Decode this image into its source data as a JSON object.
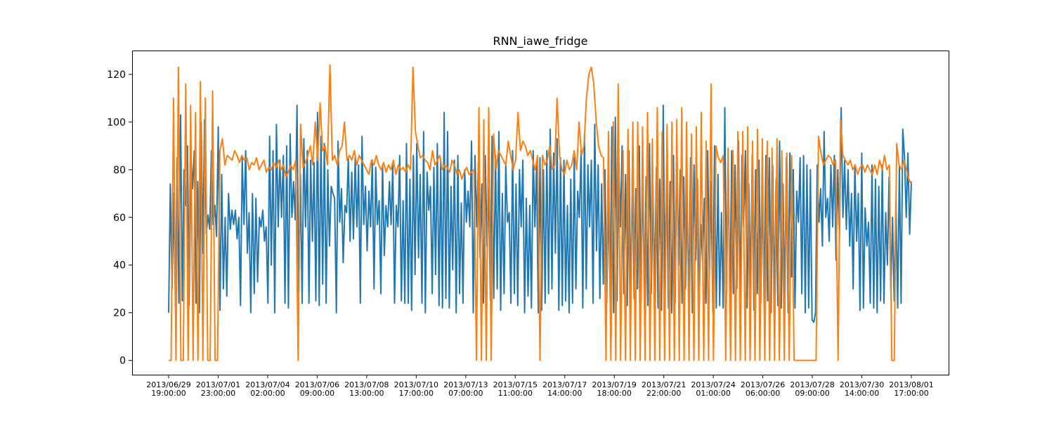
{
  "chart_data": {
    "type": "line",
    "title": "RNN_iawe_fridge",
    "xlabel": "",
    "ylabel": "",
    "ylim": [
      -6,
      130
    ],
    "yticks": [
      0,
      20,
      40,
      60,
      80,
      100,
      120
    ],
    "grid": false,
    "legend": "none",
    "x_start": "2013/06/29 19:00:00",
    "x_end": "2013/08/01 17:00:00",
    "x_ticks": [
      {
        "date": "2013/06/29",
        "time": "19:00:00"
      },
      {
        "date": "2013/07/01",
        "time": "23:00:00"
      },
      {
        "date": "2013/07/04",
        "time": "02:00:00"
      },
      {
        "date": "2013/07/06",
        "time": "09:00:00"
      },
      {
        "date": "2013/07/08",
        "time": "13:00:00"
      },
      {
        "date": "2013/07/10",
        "time": "17:00:00"
      },
      {
        "date": "2013/07/13",
        "time": "07:00:00"
      },
      {
        "date": "2013/07/15",
        "time": "11:00:00"
      },
      {
        "date": "2013/07/17",
        "time": "14:00:00"
      },
      {
        "date": "2013/07/19",
        "time": "18:00:00"
      },
      {
        "date": "2013/07/21",
        "time": "22:00:00"
      },
      {
        "date": "2013/07/24",
        "time": "01:00:00"
      },
      {
        "date": "2013/07/26",
        "time": "06:00:00"
      },
      {
        "date": "2013/07/28",
        "time": "09:00:00"
      },
      {
        "date": "2013/07/30",
        "time": "14:00:00"
      },
      {
        "date": "2013/08/01",
        "time": "17:00:00"
      }
    ],
    "series": [
      {
        "color": "#1f77b4",
        "values": [
          20,
          74,
          30,
          70,
          22,
          85,
          24,
          103,
          25,
          80,
          65,
          90,
          23,
          86,
          72,
          88,
          24,
          75,
          20,
          100,
          45,
          101,
          53,
          61,
          55,
          88,
          57,
          65,
          52,
          98,
          21,
          78,
          30,
          60,
          27,
          70,
          55,
          63,
          57,
          63,
          51,
          60,
          23,
          85,
          57,
          88,
          45,
          62,
          20,
          70,
          28,
          68,
          33,
          60,
          56,
          63,
          50,
          56,
          24,
          94,
          40,
          88,
          20,
          99,
          56,
          84,
          60,
          86,
          24,
          90,
          22,
          95,
          60,
          75,
          59,
          107,
          28,
          78,
          24,
          93,
          56,
          88,
          24,
          84,
          50,
          83,
          25,
          104,
          23,
          94,
          32,
          91,
          24,
          80,
          48,
          73,
          70,
          68,
          20,
          92,
          58,
          72,
          41,
          65,
          62,
          85,
          50,
          79,
          51,
          85,
          56,
          82,
          24,
          94,
          57,
          73,
          46,
          71,
          56,
          84,
          30,
          81,
          57,
          67,
          28,
          82,
          44,
          65,
          56,
          75,
          57,
          82,
          24,
          65,
          56,
          86,
          25,
          67,
          24,
          91,
          24,
          76,
          21,
          86,
          36,
          91,
          43,
          78,
          24,
          96,
          20,
          79,
          63,
          73,
          28,
          81,
          36,
          91,
          23,
          84,
          22,
          104,
          26,
          96,
          22,
          73,
          38,
          84,
          20,
          86,
          28,
          66,
          24,
          80,
          58,
          71,
          56,
          92,
          20,
          86,
          56,
          83,
          43,
          74,
          24,
          86,
          48,
          72,
          25,
          94,
          26,
          86,
          30,
          96,
          21,
          70,
          28,
          82,
          58,
          62,
          24,
          88,
          28,
          74,
          23,
          80,
          56,
          84,
          20,
          68,
          27,
          65,
          22,
          88,
          56,
          82,
          20,
          85,
          21,
          80,
          24,
          88,
          28,
          97,
          30,
          87,
          45,
          93,
          21,
          85,
          23,
          84,
          25,
          65,
          20,
          76,
          24,
          85,
          30,
          71,
          60,
          88,
          22,
          95,
          30,
          82,
          56,
          84,
          24,
          99,
          46,
          82,
          26,
          74,
          32,
          80,
          24,
          70,
          26,
          98,
          20,
          102,
          25,
          85,
          56,
          90,
          28,
          78,
          23,
          88,
          22,
          81,
          26,
          72,
          30,
          90,
          24,
          83,
          22,
          77,
          23,
          91,
          28,
          73,
          30,
          81,
          22,
          76,
          21,
          107,
          30,
          81,
          22,
          75,
          20,
          86,
          24,
          90,
          40,
          80,
          24,
          77,
          30,
          70,
          23,
          85,
          20,
          82,
          42,
          76,
          22,
          57,
          42,
          68,
          24,
          88,
          35,
          75,
          20,
          90,
          22,
          78,
          23,
          62,
          22,
          106,
          28,
          84,
          20,
          88,
          28,
          82,
          30,
          92,
          24,
          86,
          56,
          88,
          22,
          74,
          30,
          86,
          21,
          80,
          28,
          84,
          24,
          75,
          22,
          86,
          25,
          85,
          20,
          82,
          22,
          76,
          23,
          92,
          22,
          74,
          24,
          85,
          20,
          87,
          35,
          80,
          22,
          71,
          58,
          85,
          28,
          86,
          20,
          82,
          22,
          80,
          17,
          16,
          20,
          82,
          58,
          72,
          48,
          96,
          60,
          68,
          50,
          82,
          56,
          86,
          42,
          80,
          52,
          106,
          60,
          84,
          55,
          80,
          48,
          70,
          30,
          82,
          50,
          70,
          21,
          87,
          22,
          64,
          48,
          58,
          24,
          82,
          22,
          76,
          20,
          73,
          25,
          82,
          24,
          62,
          40,
          77,
          28,
          60,
          25,
          67,
          22,
          82,
          24,
          97,
          85,
          60,
          87,
          53,
          75
        ]
      },
      {
        "color": "#ff7f0e",
        "values": [
          0,
          0,
          110,
          0,
          123,
          0,
          0,
          116,
          0,
          107,
          0,
          104,
          0,
          117,
          0,
          110,
          0,
          0,
          113,
          0,
          0,
          88,
          93,
          82,
          86,
          85,
          84,
          88,
          86,
          83,
          86,
          84,
          85,
          80,
          83,
          82,
          85,
          80,
          82,
          84,
          79,
          81,
          80,
          83,
          81,
          84,
          80,
          82,
          77,
          79,
          82,
          80,
          84,
          0,
          99,
          81,
          83,
          86,
          90,
          82,
          100,
          84,
          108,
          88,
          90,
          82,
          124,
          84,
          86,
          82,
          88,
          90,
          100,
          84,
          86,
          84,
          88,
          82,
          86,
          84,
          82,
          80,
          78,
          84,
          82,
          86,
          82,
          80,
          83,
          79,
          82,
          80,
          84,
          78,
          82,
          80,
          81,
          79,
          82,
          80,
          123,
          96,
          90,
          85,
          86,
          84,
          83,
          80,
          88,
          82,
          84,
          86,
          80,
          82,
          81,
          79,
          84,
          82,
          78,
          80,
          76,
          79,
          81,
          78,
          79,
          80,
          0,
          106,
          0,
          101,
          0,
          106,
          0,
          95,
          80,
          88,
          86,
          84,
          82,
          92,
          86,
          80,
          84,
          104,
          88,
          92,
          90,
          86,
          88,
          84,
          80,
          86,
          0,
          86,
          82,
          84,
          90,
          80,
          82,
          110,
          86,
          80,
          78,
          84,
          80,
          82,
          88,
          80,
          100,
          86,
          90,
          110,
          120,
          123,
          116,
          100,
          90,
          86,
          85,
          0,
          96,
          0,
          100,
          0,
          116,
          0,
          88,
          0,
          97,
          0,
          100,
          0,
          100,
          0,
          98,
          0,
          104,
          0,
          93,
          0,
          106,
          0,
          96,
          0,
          99,
          0,
          100,
          0,
          101,
          0,
          106,
          0,
          100,
          0,
          95,
          0,
          98,
          0,
          104,
          0,
          92,
          0,
          116,
          0,
          90,
          85,
          83,
          86,
          0,
          89,
          0,
          88,
          0,
          96,
          0,
          96,
          0,
          98,
          0,
          92,
          0,
          97,
          0,
          93,
          0,
          92,
          0,
          89,
          0,
          93,
          0,
          88,
          0,
          87,
          0,
          86,
          0,
          0,
          0,
          0,
          0,
          0,
          0,
          0,
          0,
          0,
          94,
          87,
          82,
          84,
          86,
          85,
          82,
          84,
          0,
          101,
          86,
          84,
          82,
          84,
          80,
          82,
          78,
          81,
          82,
          79,
          82,
          80,
          78,
          82,
          78,
          84,
          80,
          86,
          80,
          82,
          0,
          0,
          91,
          82,
          80,
          84,
          80,
          76,
          74
        ]
      }
    ]
  }
}
